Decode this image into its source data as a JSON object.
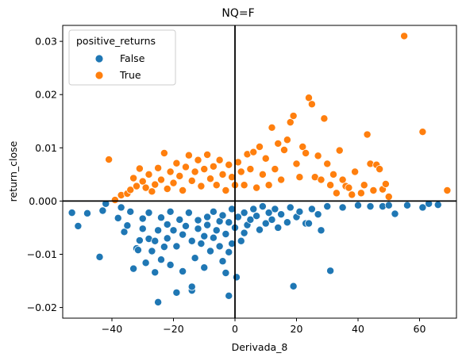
{
  "chart_data": {
    "type": "scatter",
    "title": "NQ=F",
    "xlabel": "Derivada_8",
    "ylabel": "return_close",
    "xlim": [
      -56,
      72
    ],
    "ylim": [
      -0.022,
      0.033
    ],
    "xticks": [
      -40,
      -20,
      0,
      20,
      40,
      60
    ],
    "yticks": [
      -0.02,
      -0.01,
      0.0,
      0.01,
      0.02,
      0.03
    ],
    "xtick_labels": [
      "−40",
      "−20",
      "0",
      "20",
      "40",
      "60"
    ],
    "ytick_labels": [
      "−0.02",
      "−0.01",
      "0.000",
      "0.01",
      "0.02",
      "0.03"
    ],
    "reference_lines": {
      "x": 0,
      "y": 0
    },
    "grid": false,
    "legend": {
      "title": "positive_returns",
      "placement": "top-left",
      "entries": [
        {
          "label": "False",
          "color": "#1f77b4"
        },
        {
          "label": "True",
          "color": "#ff7f0e"
        }
      ]
    },
    "series": [
      {
        "name": "False",
        "color": "#1f77b4",
        "points": [
          [
            -53,
            -0.0022
          ],
          [
            -51,
            -0.0047
          ],
          [
            -48,
            -0.0023
          ],
          [
            -44,
            -0.0105
          ],
          [
            -43,
            -0.0018
          ],
          [
            -42,
            -0.0005
          ],
          [
            -38,
            -0.0032
          ],
          [
            -37,
            -0.0012
          ],
          [
            -36,
            -0.0058
          ],
          [
            -35,
            -0.0046
          ],
          [
            -34,
            -0.002
          ],
          [
            -33,
            -0.0127
          ],
          [
            -32,
            -0.0089
          ],
          [
            -31.5,
            -0.0092
          ],
          [
            -31,
            -0.0074
          ],
          [
            -30,
            -0.0033
          ],
          [
            -30,
            -0.0052
          ],
          [
            -29,
            -0.0116
          ],
          [
            -28,
            -0.0022
          ],
          [
            -28,
            -0.0071
          ],
          [
            -27,
            -0.0094
          ],
          [
            -26,
            -0.0134
          ],
          [
            -26,
            -0.0075
          ],
          [
            -25,
            -0.019
          ],
          [
            -25,
            -0.0055
          ],
          [
            -24,
            -0.011
          ],
          [
            -24,
            -0.0031
          ],
          [
            -23,
            -0.0086
          ],
          [
            -22,
            -0.007
          ],
          [
            -22,
            -0.0044
          ],
          [
            -21,
            -0.012
          ],
          [
            -21,
            -0.002
          ],
          [
            -20,
            -0.0055
          ],
          [
            -19,
            -0.0085
          ],
          [
            -19,
            -0.0172
          ],
          [
            -18,
            -0.0035
          ],
          [
            -17,
            -0.0132
          ],
          [
            -17,
            -0.0063
          ],
          [
            -16,
            -0.0047
          ],
          [
            -15,
            -0.0022
          ],
          [
            -14,
            -0.0168
          ],
          [
            -14,
            -0.0161
          ],
          [
            -14,
            -0.0075
          ],
          [
            -13,
            -0.0107
          ],
          [
            -12,
            -0.0052
          ],
          [
            -12,
            -0.0036
          ],
          [
            -11,
            -0.008
          ],
          [
            -10,
            -0.0066
          ],
          [
            -10,
            -0.0125
          ],
          [
            -9,
            -0.003
          ],
          [
            -9,
            -0.0045
          ],
          [
            -8,
            -0.0094
          ],
          [
            -7,
            -0.0069
          ],
          [
            -7,
            -0.002
          ],
          [
            -6,
            -0.0055
          ],
          [
            -5,
            -0.0038
          ],
          [
            -5,
            -0.0085
          ],
          [
            -4,
            -0.0113
          ],
          [
            -4,
            -0.0027
          ],
          [
            -3,
            -0.0135
          ],
          [
            -3,
            -0.0062
          ],
          [
            -2,
            -0.0178
          ],
          [
            -2,
            -0.0096
          ],
          [
            -2,
            -0.004
          ],
          [
            -1,
            -0.008
          ],
          [
            -1,
            -0.0015
          ],
          [
            0,
            -0.005
          ],
          [
            0.5,
            -0.0143
          ],
          [
            1,
            -0.003
          ],
          [
            2,
            -0.0075
          ],
          [
            3,
            -0.006
          ],
          [
            3,
            -0.0022
          ],
          [
            4,
            -0.0045
          ],
          [
            5,
            -0.0035
          ],
          [
            6,
            -0.0015
          ],
          [
            7,
            -0.0028
          ],
          [
            8,
            -0.0054
          ],
          [
            9,
            -0.001
          ],
          [
            10,
            -0.0042
          ],
          [
            11,
            -0.0022
          ],
          [
            12,
            -0.0035
          ],
          [
            13,
            -0.0015
          ],
          [
            14,
            -0.005
          ],
          [
            15,
            -0.0025
          ],
          [
            17,
            -0.004
          ],
          [
            18,
            -0.0012
          ],
          [
            19,
            -0.016
          ],
          [
            20,
            -0.003
          ],
          [
            21,
            -0.002
          ],
          [
            23,
            -0.0042
          ],
          [
            24,
            -0.0042
          ],
          [
            25,
            -0.0015
          ],
          [
            27,
            -0.0025
          ],
          [
            28,
            -0.0055
          ],
          [
            30,
            -0.001
          ],
          [
            31,
            -0.0131
          ],
          [
            35,
            -0.0012
          ],
          [
            40,
            -0.0008
          ],
          [
            44,
            -0.001
          ],
          [
            48,
            -0.001
          ],
          [
            50,
            -0.0008
          ],
          [
            52,
            -0.0024
          ],
          [
            56,
            -0.0008
          ],
          [
            61,
            -0.0012
          ],
          [
            63,
            -0.0005
          ],
          [
            66,
            -0.0007
          ]
        ]
      },
      {
        "name": "True",
        "color": "#ff7f0e",
        "points": [
          [
            -41,
            0.0078
          ],
          [
            -39,
            0.0002
          ],
          [
            -37,
            0.0011
          ],
          [
            -35,
            0.0014
          ],
          [
            -34,
            0.0021
          ],
          [
            -33,
            0.0043
          ],
          [
            -32,
            0.0028
          ],
          [
            -31,
            0.0061
          ],
          [
            -30,
            0.0037
          ],
          [
            -29,
            0.0025
          ],
          [
            -28,
            0.005
          ],
          [
            -27,
            0.0018
          ],
          [
            -26,
            0.0031
          ],
          [
            -25,
            0.0062
          ],
          [
            -24,
            0.004
          ],
          [
            -23,
            0.009
          ],
          [
            -22,
            0.0023
          ],
          [
            -21,
            0.0055
          ],
          [
            -20,
            0.0034
          ],
          [
            -19,
            0.0071
          ],
          [
            -18,
            0.0047
          ],
          [
            -17,
            0.002
          ],
          [
            -16,
            0.0064
          ],
          [
            -15,
            0.0086
          ],
          [
            -14,
            0.0038
          ],
          [
            -13,
            0.0055
          ],
          [
            -12,
            0.0077
          ],
          [
            -11,
            0.0028
          ],
          [
            -10,
            0.006
          ],
          [
            -9,
            0.0087
          ],
          [
            -8,
            0.0042
          ],
          [
            -7,
            0.0065
          ],
          [
            -6,
            0.003
          ],
          [
            -5,
            0.0077
          ],
          [
            -4,
            0.005
          ],
          [
            -3,
            0.002
          ],
          [
            -2,
            0.0068
          ],
          [
            -1,
            0.0045
          ],
          [
            0,
            0.003
          ],
          [
            1,
            0.0073
          ],
          [
            2,
            0.0055
          ],
          [
            3,
            0.003
          ],
          [
            4,
            0.0088
          ],
          [
            5,
            0.006
          ],
          [
            6,
            0.0092
          ],
          [
            7,
            0.0025
          ],
          [
            8,
            0.0102
          ],
          [
            9,
            0.005
          ],
          [
            10,
            0.008
          ],
          [
            11,
            0.003
          ],
          [
            12,
            0.0138
          ],
          [
            13,
            0.006
          ],
          [
            14,
            0.0108
          ],
          [
            15,
            0.004
          ],
          [
            16,
            0.0096
          ],
          [
            17,
            0.0115
          ],
          [
            18,
            0.0148
          ],
          [
            19,
            0.016
          ],
          [
            20,
            0.007
          ],
          [
            21,
            0.0045
          ],
          [
            22,
            0.0102
          ],
          [
            23,
            0.009
          ],
          [
            24,
            0.0194
          ],
          [
            25,
            0.0182
          ],
          [
            26,
            0.0045
          ],
          [
            27,
            0.0085
          ],
          [
            28,
            0.004
          ],
          [
            29,
            0.0155
          ],
          [
            30,
            0.007
          ],
          [
            31,
            0.003
          ],
          [
            32,
            0.005
          ],
          [
            33,
            0.0015
          ],
          [
            34,
            0.0095
          ],
          [
            35,
            0.004
          ],
          [
            36,
            0.0028
          ],
          [
            37,
            0.0025
          ],
          [
            38,
            0.0012
          ],
          [
            39,
            0.0055
          ],
          [
            41,
            0.0015
          ],
          [
            42,
            0.003
          ],
          [
            43,
            0.0125
          ],
          [
            44,
            0.007
          ],
          [
            45,
            0.002
          ],
          [
            46,
            0.0068
          ],
          [
            47,
            0.006
          ],
          [
            48,
            0.0022
          ],
          [
            49,
            0.0032
          ],
          [
            50,
            0.0008
          ],
          [
            55,
            0.031
          ],
          [
            61,
            0.013
          ],
          [
            69,
            0.002
          ]
        ]
      }
    ]
  }
}
